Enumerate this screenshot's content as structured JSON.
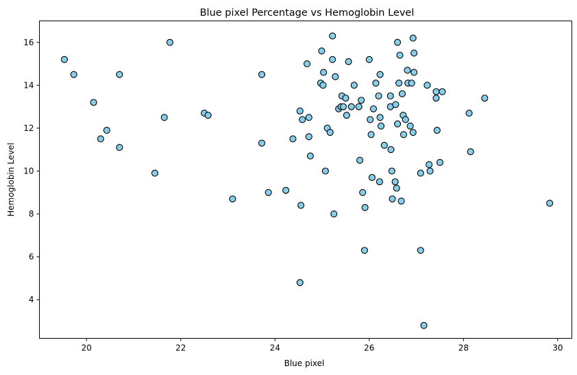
{
  "chart_data": {
    "type": "scatter",
    "title": "Blue pixel Percentage vs Hemoglobin Level",
    "xlabel": "Blue pixel",
    "ylabel": "Hemoglobin Level",
    "xlim": [
      19.0,
      30.3
    ],
    "ylim": [
      2.2,
      17.0
    ],
    "xticks": [
      "20",
      "22",
      "24",
      "26",
      "28",
      "30"
    ],
    "yticks": [
      "4",
      "6",
      "8",
      "10",
      "12",
      "14",
      "16"
    ],
    "grid": false,
    "marker_fill": "#87ceeb",
    "marker_edge": "#000000",
    "points": [
      [
        19.53,
        15.2
      ],
      [
        19.73,
        14.5
      ],
      [
        20.15,
        13.2
      ],
      [
        20.3,
        11.5
      ],
      [
        20.43,
        11.9
      ],
      [
        20.7,
        11.1
      ],
      [
        20.7,
        14.5
      ],
      [
        21.45,
        9.9
      ],
      [
        21.65,
        12.5
      ],
      [
        21.77,
        16.0
      ],
      [
        22.5,
        12.7
      ],
      [
        22.58,
        12.6
      ],
      [
        23.1,
        8.7
      ],
      [
        23.72,
        11.3
      ],
      [
        23.72,
        14.5
      ],
      [
        23.86,
        9.0
      ],
      [
        24.23,
        9.1
      ],
      [
        24.38,
        11.5
      ],
      [
        24.53,
        4.8
      ],
      [
        24.53,
        12.8
      ],
      [
        24.55,
        8.4
      ],
      [
        24.58,
        12.4
      ],
      [
        24.68,
        15.0
      ],
      [
        24.72,
        12.5
      ],
      [
        24.72,
        11.6
      ],
      [
        24.75,
        10.7
      ],
      [
        24.97,
        14.1
      ],
      [
        24.99,
        15.6
      ],
      [
        25.02,
        14.0
      ],
      [
        25.03,
        14.6
      ],
      [
        25.07,
        10.0
      ],
      [
        25.11,
        12.0
      ],
      [
        25.17,
        11.8
      ],
      [
        25.22,
        16.3
      ],
      [
        25.22,
        15.2
      ],
      [
        25.25,
        8.0
      ],
      [
        25.28,
        14.4
      ],
      [
        25.35,
        12.9
      ],
      [
        25.4,
        13.0
      ],
      [
        25.42,
        13.5
      ],
      [
        25.45,
        13.0
      ],
      [
        25.5,
        13.4
      ],
      [
        25.52,
        12.6
      ],
      [
        25.56,
        15.1
      ],
      [
        25.62,
        13.0
      ],
      [
        25.68,
        14.0
      ],
      [
        25.78,
        13.0
      ],
      [
        25.8,
        10.5
      ],
      [
        25.83,
        13.3
      ],
      [
        25.86,
        9.0
      ],
      [
        25.9,
        6.3
      ],
      [
        25.91,
        8.3
      ],
      [
        26.0,
        15.2
      ],
      [
        26.02,
        12.4
      ],
      [
        26.04,
        11.7
      ],
      [
        26.06,
        9.7
      ],
      [
        26.09,
        12.9
      ],
      [
        26.14,
        14.1
      ],
      [
        26.2,
        13.5
      ],
      [
        26.22,
        9.5
      ],
      [
        26.23,
        12.5
      ],
      [
        26.25,
        12.1
      ],
      [
        26.23,
        14.5
      ],
      [
        26.32,
        11.2
      ],
      [
        26.45,
        13.0
      ],
      [
        26.45,
        13.5
      ],
      [
        26.46,
        11.0
      ],
      [
        26.48,
        10.0
      ],
      [
        26.49,
        8.7
      ],
      [
        26.55,
        9.5
      ],
      [
        26.56,
        13.1
      ],
      [
        26.58,
        9.2
      ],
      [
        26.6,
        12.2
      ],
      [
        26.6,
        16.0
      ],
      [
        26.63,
        14.1
      ],
      [
        26.65,
        15.4
      ],
      [
        26.68,
        8.6
      ],
      [
        26.7,
        13.6
      ],
      [
        26.72,
        12.6
      ],
      [
        26.73,
        11.7
      ],
      [
        26.77,
        12.4
      ],
      [
        26.81,
        14.7
      ],
      [
        26.82,
        14.1
      ],
      [
        26.87,
        12.1
      ],
      [
        26.9,
        14.1
      ],
      [
        26.93,
        16.2
      ],
      [
        26.93,
        11.8
      ],
      [
        26.95,
        15.5
      ],
      [
        26.95,
        14.6
      ],
      [
        27.09,
        9.9
      ],
      [
        27.09,
        6.3
      ],
      [
        27.16,
        2.8
      ],
      [
        27.23,
        14.0
      ],
      [
        27.27,
        10.3
      ],
      [
        27.29,
        10.0
      ],
      [
        27.42,
        13.7
      ],
      [
        27.42,
        13.4
      ],
      [
        27.44,
        11.9
      ],
      [
        27.5,
        10.4
      ],
      [
        27.55,
        13.7
      ],
      [
        28.12,
        12.7
      ],
      [
        28.15,
        10.9
      ],
      [
        28.45,
        13.4
      ],
      [
        29.83,
        8.5
      ]
    ]
  }
}
